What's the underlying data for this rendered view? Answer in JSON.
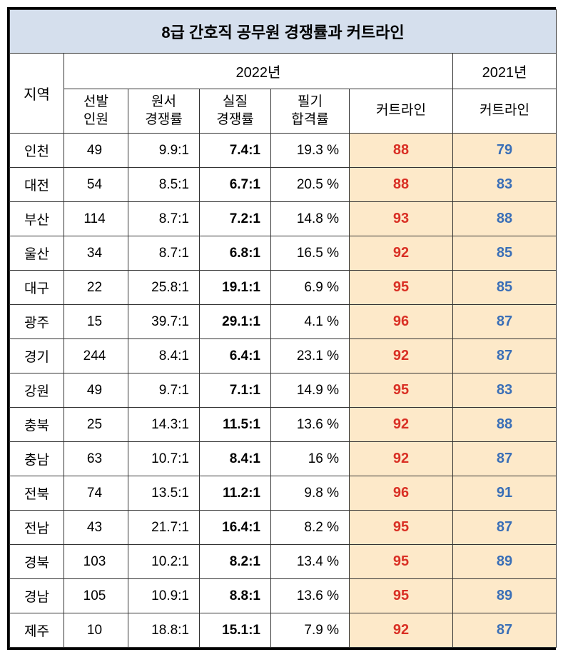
{
  "title": "8급 간호직 공무원 경쟁률과 커트라인",
  "years": {
    "y2022": "2022년",
    "y2021": "2021년"
  },
  "headers": {
    "region": "지역",
    "recruits": "선발\n인원",
    "appRatio": "원서\n경쟁률",
    "realRatio": "실질\n경쟁률",
    "passRate": "필기\n합격률",
    "cutoff": "커트라인",
    "cutoff21": "커트라인"
  },
  "rows": [
    {
      "region": "인천",
      "recruits": "49",
      "appRatio": "9.9:1",
      "realRatio": "7.4:1",
      "passRate": "19.3 %",
      "cut22": "88",
      "cut21": "79"
    },
    {
      "region": "대전",
      "recruits": "54",
      "appRatio": "8.5:1",
      "realRatio": "6.7:1",
      "passRate": "20.5 %",
      "cut22": "88",
      "cut21": "83"
    },
    {
      "region": "부산",
      "recruits": "114",
      "appRatio": "8.7:1",
      "realRatio": "7.2:1",
      "passRate": "14.8 %",
      "cut22": "93",
      "cut21": "88"
    },
    {
      "region": "울산",
      "recruits": "34",
      "appRatio": "8.7:1",
      "realRatio": "6.8:1",
      "passRate": "16.5 %",
      "cut22": "92",
      "cut21": "85"
    },
    {
      "region": "대구",
      "recruits": "22",
      "appRatio": "25.8:1",
      "realRatio": "19.1:1",
      "passRate": "6.9 %",
      "cut22": "95",
      "cut21": "85"
    },
    {
      "region": "광주",
      "recruits": "15",
      "appRatio": "39.7:1",
      "realRatio": "29.1:1",
      "passRate": "4.1 %",
      "cut22": "96",
      "cut21": "87"
    },
    {
      "region": "경기",
      "recruits": "244",
      "appRatio": "8.4:1",
      "realRatio": "6.4:1",
      "passRate": "23.1 %",
      "cut22": "92",
      "cut21": "87"
    },
    {
      "region": "강원",
      "recruits": "49",
      "appRatio": "9.7:1",
      "realRatio": "7.1:1",
      "passRate": "14.9 %",
      "cut22": "95",
      "cut21": "83"
    },
    {
      "region": "충북",
      "recruits": "25",
      "appRatio": "14.3:1",
      "realRatio": "11.5:1",
      "passRate": "13.6 %",
      "cut22": "92",
      "cut21": "88"
    },
    {
      "region": "충남",
      "recruits": "63",
      "appRatio": "10.7:1",
      "realRatio": "8.4:1",
      "passRate": "16 %",
      "cut22": "92",
      "cut21": "87"
    },
    {
      "region": "전북",
      "recruits": "74",
      "appRatio": "13.5:1",
      "realRatio": "11.2:1",
      "passRate": "9.8 %",
      "cut22": "96",
      "cut21": "91"
    },
    {
      "region": "전남",
      "recruits": "43",
      "appRatio": "21.7:1",
      "realRatio": "16.4:1",
      "passRate": "8.2 %",
      "cut22": "95",
      "cut21": "87"
    },
    {
      "region": "경북",
      "recruits": "103",
      "appRatio": "10.2:1",
      "realRatio": "8.2:1",
      "passRate": "13.4 %",
      "cut22": "95",
      "cut21": "89"
    },
    {
      "region": "경남",
      "recruits": "105",
      "appRatio": "10.9:1",
      "realRatio": "8.8:1",
      "passRate": "13.6 %",
      "cut22": "95",
      "cut21": "89"
    },
    {
      "region": "제주",
      "recruits": "10",
      "appRatio": "18.8:1",
      "realRatio": "15.1:1",
      "passRate": "7.9 %",
      "cut22": "92",
      "cut21": "87"
    }
  ],
  "colors": {
    "titleBg": "#d5dfed",
    "highlightBg": "#fde9c9",
    "cut22Color": "#d93025",
    "cut21Color": "#3a6fb7",
    "borderColor": "#333333"
  }
}
